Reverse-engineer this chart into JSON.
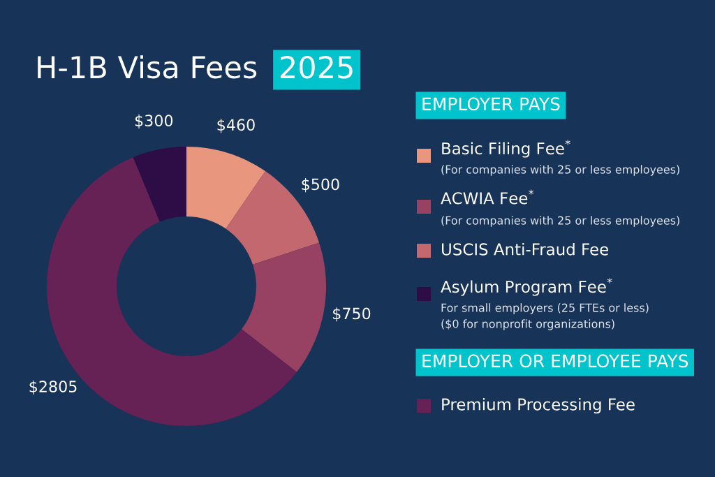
{
  "chart_data": {
    "type": "donut",
    "title": "H-1B Visa Fees",
    "subtitle": "2025",
    "categories": [
      "Basic Filing Fee$^{*}$\n(For companies with 25 or less employees)",
      "USCIS Anti-Fraud Fee",
      "ACWIA Fee$^{*}$\n(For companies with 25 or less employees)",
      "Premium Processing Fee",
      "Asylum Program Fee$^{*}$\nFor small employers (25 FTEs or less)\n($0 for nonprofit organizations)"
    ],
    "values": [
      460,
      500,
      750,
      2805,
      300
    ],
    "colors": [
      "#e8967e",
      "#c3686e",
      "#984263",
      "#662155",
      "#2e0c45"
    ],
    "value_labels": [
      "$460",
      "$500",
      "$750",
      "$2805",
      "$300"
    ],
    "annotations": [
      "EMPLOYER PAYS",
      "EMPLOYER OR EMPLOYEE PAYS"
    ],
    "legend": "right"
  }
}
